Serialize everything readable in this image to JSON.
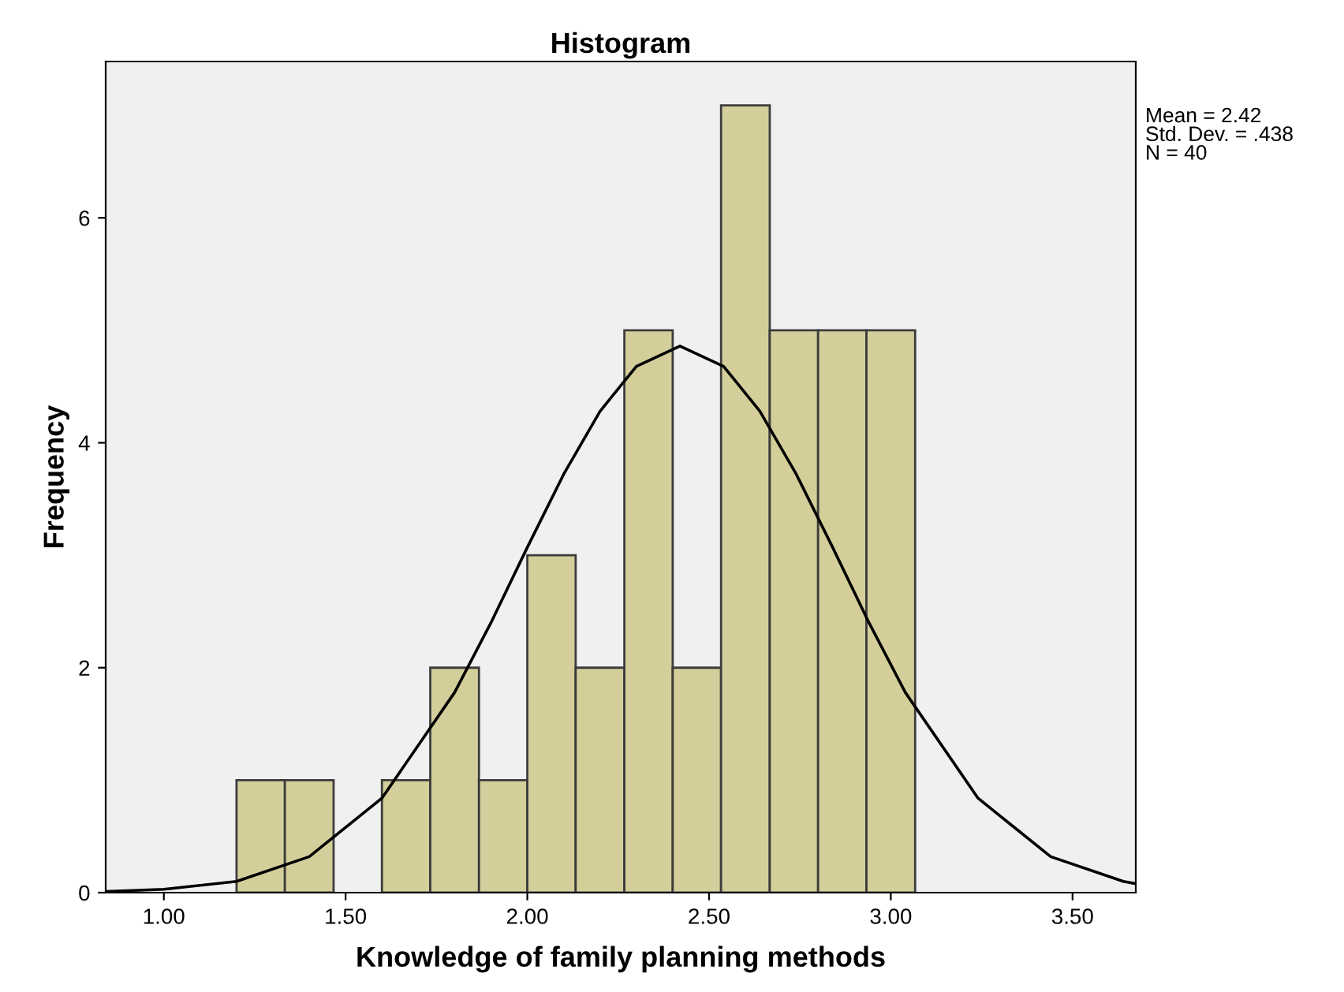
{
  "chart_data": {
    "type": "histogram",
    "title": "Histogram",
    "xlabel": "Knowledge of family planning methods",
    "ylabel": "Frequency",
    "series": [
      {
        "color": "#d4cf9a",
        "bins": [
          1.2,
          1.333,
          1.467,
          1.6,
          1.733,
          1.867,
          2.0,
          2.133,
          2.267,
          2.4,
          2.533,
          2.667,
          2.8,
          2.933,
          3.067
        ],
        "values": [
          1,
          1,
          0,
          1,
          2,
          1,
          3,
          2,
          5,
          2,
          7,
          5,
          5,
          5
        ]
      },
      {
        "type": "line",
        "color": "#000000",
        "x": [
          0.84,
          1.0,
          1.2,
          1.4,
          1.6,
          1.8,
          1.9,
          2.0,
          2.1,
          2.2,
          2.3,
          2.42,
          2.54,
          2.64,
          2.74,
          2.84,
          2.94,
          3.04,
          3.24,
          3.44,
          3.64,
          3.674
        ],
        "values": [
          0.01,
          0.03,
          0.1,
          0.32,
          0.84,
          1.78,
          2.4,
          3.07,
          3.72,
          4.28,
          4.68,
          4.86,
          4.68,
          4.28,
          3.72,
          3.07,
          2.4,
          1.78,
          0.84,
          0.32,
          0.1,
          0.08
        ]
      }
    ],
    "xlim": [
      0.84,
      3.674
    ],
    "ylim": [
      0,
      7.39
    ],
    "xticks": [
      {
        "value": 1.0,
        "label": "1.00"
      },
      {
        "value": 1.5,
        "label": "1.50"
      },
      {
        "value": 2.0,
        "label": "2.00"
      },
      {
        "value": 2.5,
        "label": "2.50"
      },
      {
        "value": 3.0,
        "label": "3.00"
      },
      {
        "value": 3.5,
        "label": "3.50"
      }
    ],
    "yticks": [
      0,
      2,
      4,
      6
    ],
    "annotations": [
      "Mean = 2.42\nStd. Dev. = .438\nN = 40"
    ],
    "grid": false,
    "marker": "none",
    "line_style": "solid"
  }
}
